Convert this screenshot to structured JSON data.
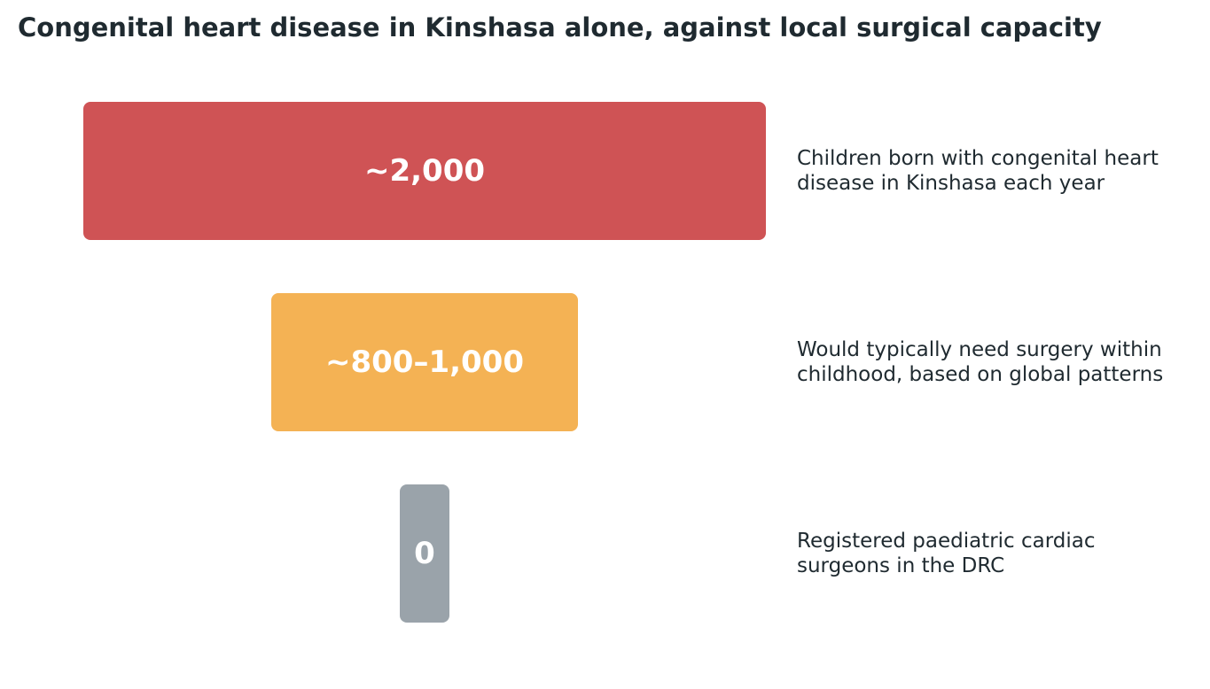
{
  "title": "Congenital heart disease in Kinshasa alone, against local surgical capacity",
  "chart_data": {
    "type": "bar",
    "orientation": "horizontal-centered-funnel",
    "title": "Congenital heart disease in Kinshasa alone, against local surgical capacity",
    "categories": [
      [
        "Children born with congenital heart",
        "disease in Kinshasa each year"
      ],
      [
        "Would typically need surgery within",
        "childhood, based on global patterns"
      ],
      [
        "Registered paediatric cardiac",
        "surgeons in the DRC"
      ]
    ],
    "value_labels": [
      "~2,000",
      "~800–1,000",
      "0"
    ],
    "values": [
      2000,
      900,
      0
    ],
    "colors": [
      "#cf5355",
      "#f4b254",
      "#9aa3aa"
    ],
    "grid": false,
    "legend": "none"
  }
}
